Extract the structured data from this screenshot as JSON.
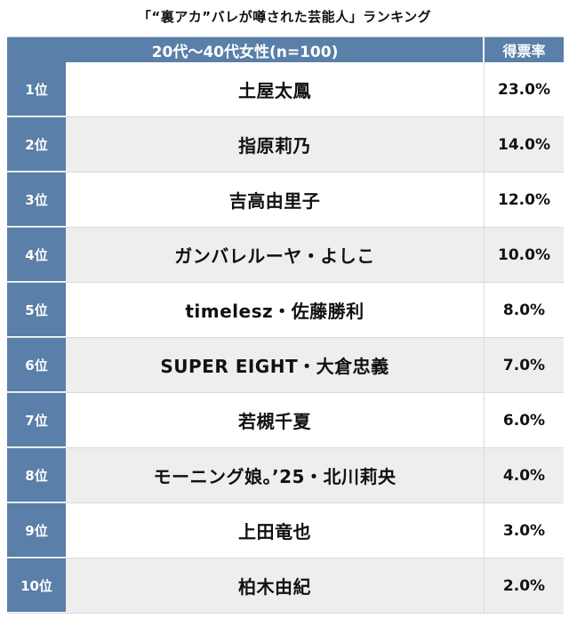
{
  "title": "「“裏アカ”バレが噂された芸能人」ランキング",
  "header": {
    "group_label": "20代～40代女性(n=100)",
    "rate_label": "得票率"
  },
  "chart_data": {
    "type": "table",
    "title": "「“裏アカ”バレが噂された芸能人」ランキング",
    "columns": [
      "20代～40代女性(n=100)",
      "得票率"
    ],
    "rows": [
      {
        "rank": "1位",
        "name": "土屋太鳳",
        "value": 23.0,
        "label": "23.0%"
      },
      {
        "rank": "2位",
        "name": "指原莉乃",
        "value": 14.0,
        "label": "14.0%"
      },
      {
        "rank": "3位",
        "name": "吉高由里子",
        "value": 12.0,
        "label": "12.0%"
      },
      {
        "rank": "4位",
        "name": "ガンバレルーヤ・よしこ",
        "value": 10.0,
        "label": "10.0%"
      },
      {
        "rank": "5位",
        "name": "timelesz・佐藤勝利",
        "value": 8.0,
        "label": "8.0%"
      },
      {
        "rank": "6位",
        "name": "SUPER EIGHT・大倉忠義",
        "value": 7.0,
        "label": "7.0%"
      },
      {
        "rank": "7位",
        "name": "若槻千夏",
        "value": 6.0,
        "label": "6.0%"
      },
      {
        "rank": "8位",
        "name": "モーニング娘。’25・北川莉央",
        "value": 4.0,
        "label": "4.0%"
      },
      {
        "rank": "9位",
        "name": "上田竜也",
        "value": 3.0,
        "label": "3.0%"
      },
      {
        "rank": "10位",
        "name": "柏木由紀",
        "value": 2.0,
        "label": "2.0%"
      }
    ]
  }
}
